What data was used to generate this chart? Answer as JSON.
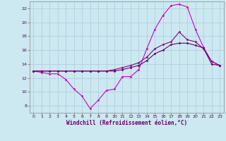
{
  "xlabel": "Windchill (Refroidissement éolien,°C)",
  "background_color": "#cce8f0",
  "grid_color": "#aaccdd",
  "line_color_dark": "#660066",
  "line_color_bright": "#cc00cc",
  "xlim": [
    -0.5,
    23.5
  ],
  "ylim": [
    7,
    23
  ],
  "xticks": [
    0,
    1,
    2,
    3,
    4,
    5,
    6,
    7,
    8,
    9,
    10,
    11,
    12,
    13,
    14,
    15,
    16,
    17,
    18,
    19,
    20,
    21,
    22,
    23
  ],
  "yticks": [
    8,
    10,
    12,
    14,
    16,
    18,
    20,
    22
  ],
  "series": [
    {
      "x": [
        0,
        1,
        2,
        3,
        4,
        5,
        6,
        7,
        8,
        9,
        10,
        11,
        12,
        13,
        14,
        15,
        16,
        17,
        18,
        19,
        20,
        21,
        22,
        23
      ],
      "y": [
        13,
        12.8,
        12.6,
        12.6,
        11.8,
        10.4,
        9.4,
        7.6,
        8.8,
        10.2,
        10.4,
        12.2,
        12.2,
        13.2,
        16.2,
        19,
        21,
        22.4,
        22.6,
        22.2,
        19,
        16.4,
        14.4,
        13.8
      ],
      "color": "#cc00cc"
    },
    {
      "x": [
        0,
        1,
        2,
        3,
        4,
        5,
        6,
        7,
        8,
        9,
        10,
        11,
        12,
        13,
        14,
        15,
        16,
        17,
        18,
        19,
        20,
        21,
        22,
        23
      ],
      "y": [
        13,
        13,
        13,
        13,
        13,
        13,
        13,
        13,
        13,
        13,
        13.2,
        13.5,
        13.8,
        14.2,
        15.0,
        16.2,
        16.8,
        17.2,
        18.6,
        17.5,
        17.2,
        16.2,
        14.4,
        13.8
      ],
      "color": "#880088"
    },
    {
      "x": [
        0,
        1,
        2,
        3,
        4,
        5,
        6,
        7,
        8,
        9,
        10,
        11,
        12,
        13,
        14,
        15,
        16,
        17,
        18,
        19,
        20,
        21,
        22,
        23
      ],
      "y": [
        13,
        13,
        13,
        13,
        13,
        13,
        13,
        13,
        13,
        13,
        13.0,
        13.2,
        13.5,
        13.8,
        14.5,
        15.5,
        16.0,
        16.8,
        17.0,
        17.0,
        16.7,
        16.3,
        14.0,
        13.8
      ],
      "color": "#660066"
    }
  ]
}
